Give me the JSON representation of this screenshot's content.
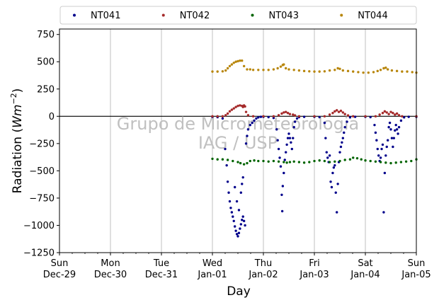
{
  "chart_data": {
    "type": "scatter",
    "xlabel": "Day",
    "ylabel_main": "Radiation (",
    "ylabel_unit": "Wm",
    "ylabel_exp": "−2",
    "ylabel_close": ")",
    "ylim": [
      -1250,
      800
    ],
    "xlim_days": [
      0,
      7
    ],
    "yticks": [
      {
        "value": 750,
        "label": "750"
      },
      {
        "value": 500,
        "label": "500"
      },
      {
        "value": 250,
        "label": "250"
      },
      {
        "value": 0,
        "label": "0"
      },
      {
        "value": -250,
        "label": "−250"
      },
      {
        "value": -500,
        "label": "−500"
      },
      {
        "value": -750,
        "label": "−750"
      },
      {
        "value": -1000,
        "label": "−1000"
      },
      {
        "value": -1250,
        "label": "−1250"
      }
    ],
    "xticks": [
      {
        "day": 0,
        "weekday": "Sun",
        "date": "Dec-29"
      },
      {
        "day": 1,
        "weekday": "Mon",
        "date": "Dec-30"
      },
      {
        "day": 2,
        "weekday": "Tue",
        "date": "Dec-31"
      },
      {
        "day": 3,
        "weekday": "Wed",
        "date": "Jan-01"
      },
      {
        "day": 4,
        "weekday": "Thu",
        "date": "Jan-02"
      },
      {
        "day": 5,
        "weekday": "Fri",
        "date": "Jan-03"
      },
      {
        "day": 6,
        "weekday": "Sat",
        "date": "Jan-04"
      },
      {
        "day": 7,
        "weekday": "Sun",
        "date": "Jan-05"
      }
    ],
    "grid": "vertical",
    "legend_position": "top",
    "watermark": [
      "Grupo de Micrometeorologia",
      "IAG / USP"
    ],
    "series": [
      {
        "name": "NT041",
        "color": "#00008b",
        "marker": "dot",
        "points": [
          [
            3.0,
            -5
          ],
          [
            3.1,
            -8
          ],
          [
            3.2,
            -20
          ],
          [
            3.25,
            -300
          ],
          [
            3.28,
            -450
          ],
          [
            3.3,
            -600
          ],
          [
            3.32,
            -700
          ],
          [
            3.34,
            -780
          ],
          [
            3.36,
            -840
          ],
          [
            3.38,
            -880
          ],
          [
            3.4,
            -920
          ],
          [
            3.42,
            -960
          ],
          [
            3.44,
            -1010
          ],
          [
            3.46,
            -1050
          ],
          [
            3.48,
            -1080
          ],
          [
            3.5,
            -1100
          ],
          [
            3.52,
            -1070
          ],
          [
            3.54,
            -1030
          ],
          [
            3.56,
            -990
          ],
          [
            3.58,
            -950
          ],
          [
            3.6,
            -920
          ],
          [
            3.62,
            -960
          ],
          [
            3.64,
            -1000
          ],
          [
            3.44,
            -650
          ],
          [
            3.48,
            -780
          ],
          [
            3.52,
            -860
          ],
          [
            3.56,
            -700
          ],
          [
            3.58,
            -620
          ],
          [
            3.6,
            -560
          ],
          [
            3.66,
            -250
          ],
          [
            3.68,
            -180
          ],
          [
            3.7,
            -120
          ],
          [
            3.74,
            -80
          ],
          [
            3.78,
            -60
          ],
          [
            3.82,
            -40
          ],
          [
            3.86,
            -20
          ],
          [
            3.9,
            -10
          ],
          [
            3.95,
            -5
          ],
          [
            4.0,
            -5
          ],
          [
            4.1,
            -8
          ],
          [
            4.2,
            -15
          ],
          [
            4.26,
            -120
          ],
          [
            4.28,
            -220
          ],
          [
            4.3,
            -300
          ],
          [
            4.32,
            -380
          ],
          [
            4.34,
            -460
          ],
          [
            4.36,
            -720
          ],
          [
            4.37,
            -870
          ],
          [
            4.38,
            -640
          ],
          [
            4.4,
            -520
          ],
          [
            4.42,
            -400
          ],
          [
            4.44,
            -330
          ],
          [
            4.46,
            -260
          ],
          [
            4.48,
            -200
          ],
          [
            4.5,
            -160
          ],
          [
            4.52,
            -200
          ],
          [
            4.54,
            -240
          ],
          [
            4.56,
            -300
          ],
          [
            4.58,
            -200
          ],
          [
            4.6,
            -100
          ],
          [
            4.62,
            -50
          ],
          [
            4.66,
            -20
          ],
          [
            4.7,
            -8
          ],
          [
            4.8,
            -5
          ],
          [
            5.0,
            -5
          ],
          [
            5.1,
            -8
          ],
          [
            5.2,
            -60
          ],
          [
            5.22,
            -200
          ],
          [
            5.24,
            -330
          ],
          [
            5.26,
            -380
          ],
          [
            5.28,
            -420
          ],
          [
            5.3,
            -360
          ],
          [
            5.32,
            -600
          ],
          [
            5.34,
            -650
          ],
          [
            5.36,
            -520
          ],
          [
            5.38,
            -470
          ],
          [
            5.4,
            -450
          ],
          [
            5.42,
            -700
          ],
          [
            5.44,
            -880
          ],
          [
            5.46,
            -620
          ],
          [
            5.48,
            -420
          ],
          [
            5.5,
            -330
          ],
          [
            5.52,
            -280
          ],
          [
            5.54,
            -240
          ],
          [
            5.56,
            -200
          ],
          [
            5.58,
            -150
          ],
          [
            5.6,
            -100
          ],
          [
            5.64,
            -50
          ],
          [
            5.7,
            -10
          ],
          [
            5.8,
            -5
          ],
          [
            6.0,
            -5
          ],
          [
            6.1,
            -8
          ],
          [
            6.18,
            -80
          ],
          [
            6.2,
            -150
          ],
          [
            6.22,
            -220
          ],
          [
            6.24,
            -300
          ],
          [
            6.26,
            -360
          ],
          [
            6.28,
            -410
          ],
          [
            6.3,
            -380
          ],
          [
            6.32,
            -300
          ],
          [
            6.34,
            -260
          ],
          [
            6.36,
            -880
          ],
          [
            6.38,
            -520
          ],
          [
            6.4,
            -360
          ],
          [
            6.42,
            -280
          ],
          [
            6.44,
            -220
          ],
          [
            6.46,
            -100
          ],
          [
            6.48,
            -60
          ],
          [
            6.5,
            -120
          ],
          [
            6.52,
            -200
          ],
          [
            6.54,
            -280
          ],
          [
            6.56,
            -200
          ],
          [
            6.58,
            -130
          ],
          [
            6.6,
            -80
          ],
          [
            6.62,
            -120
          ],
          [
            6.64,
            -160
          ],
          [
            6.66,
            -100
          ],
          [
            6.7,
            -40
          ],
          [
            6.76,
            -10
          ],
          [
            6.85,
            -5
          ],
          [
            7.0,
            -5
          ]
        ]
      },
      {
        "name": "NT042",
        "color": "#a52a2a",
        "marker": "dot",
        "points": [
          [
            3.0,
            0
          ],
          [
            3.1,
            0
          ],
          [
            3.2,
            0
          ],
          [
            3.26,
            10
          ],
          [
            3.3,
            25
          ],
          [
            3.34,
            45
          ],
          [
            3.38,
            60
          ],
          [
            3.42,
            72
          ],
          [
            3.46,
            85
          ],
          [
            3.5,
            95
          ],
          [
            3.54,
            100
          ],
          [
            3.58,
            95
          ],
          [
            3.6,
            85
          ],
          [
            3.62,
            100
          ],
          [
            3.64,
            90
          ],
          [
            3.66,
            40
          ],
          [
            3.7,
            10
          ],
          [
            3.8,
            0
          ],
          [
            4.0,
            0
          ],
          [
            4.2,
            0
          ],
          [
            4.3,
            10
          ],
          [
            4.36,
            25
          ],
          [
            4.4,
            35
          ],
          [
            4.44,
            40
          ],
          [
            4.48,
            30
          ],
          [
            4.52,
            20
          ],
          [
            4.58,
            15
          ],
          [
            4.62,
            8
          ],
          [
            4.7,
            0
          ],
          [
            5.0,
            0
          ],
          [
            5.2,
            0
          ],
          [
            5.3,
            15
          ],
          [
            5.36,
            30
          ],
          [
            5.4,
            45
          ],
          [
            5.44,
            55
          ],
          [
            5.48,
            40
          ],
          [
            5.52,
            50
          ],
          [
            5.56,
            35
          ],
          [
            5.6,
            20
          ],
          [
            5.66,
            8
          ],
          [
            5.76,
            0
          ],
          [
            6.0,
            0
          ],
          [
            6.2,
            0
          ],
          [
            6.28,
            15
          ],
          [
            6.34,
            30
          ],
          [
            6.38,
            45
          ],
          [
            6.42,
            35
          ],
          [
            6.46,
            20
          ],
          [
            6.5,
            40
          ],
          [
            6.54,
            30
          ],
          [
            6.58,
            15
          ],
          [
            6.62,
            25
          ],
          [
            6.66,
            10
          ],
          [
            6.72,
            0
          ],
          [
            7.0,
            0
          ]
        ]
      },
      {
        "name": "NT043",
        "color": "#006400",
        "marker": "dot",
        "points": [
          [
            3.0,
            -390
          ],
          [
            3.1,
            -395
          ],
          [
            3.2,
            -395
          ],
          [
            3.3,
            -400
          ],
          [
            3.4,
            -410
          ],
          [
            3.5,
            -420
          ],
          [
            3.55,
            -430
          ],
          [
            3.62,
            -440
          ],
          [
            3.68,
            -430
          ],
          [
            3.74,
            -410
          ],
          [
            3.82,
            -405
          ],
          [
            3.9,
            -410
          ],
          [
            4.0,
            -410
          ],
          [
            4.1,
            -415
          ],
          [
            4.2,
            -410
          ],
          [
            4.3,
            -415
          ],
          [
            4.4,
            -420
          ],
          [
            4.46,
            -425
          ],
          [
            4.52,
            -420
          ],
          [
            4.6,
            -415
          ],
          [
            4.7,
            -420
          ],
          [
            4.8,
            -425
          ],
          [
            4.9,
            -420
          ],
          [
            5.0,
            -410
          ],
          [
            5.1,
            -405
          ],
          [
            5.2,
            -410
          ],
          [
            5.3,
            -420
          ],
          [
            5.4,
            -415
          ],
          [
            5.5,
            -410
          ],
          [
            5.6,
            -400
          ],
          [
            5.7,
            -395
          ],
          [
            5.76,
            -380
          ],
          [
            5.84,
            -385
          ],
          [
            5.92,
            -395
          ],
          [
            6.0,
            -405
          ],
          [
            6.1,
            -410
          ],
          [
            6.2,
            -415
          ],
          [
            6.3,
            -420
          ],
          [
            6.4,
            -425
          ],
          [
            6.5,
            -430
          ],
          [
            6.6,
            -425
          ],
          [
            6.7,
            -420
          ],
          [
            6.8,
            -415
          ],
          [
            6.9,
            -410
          ],
          [
            7.0,
            -395
          ]
        ]
      },
      {
        "name": "NT044",
        "color": "#b8860b",
        "marker": "dot",
        "points": [
          [
            3.0,
            410
          ],
          [
            3.1,
            410
          ],
          [
            3.2,
            412
          ],
          [
            3.26,
            420
          ],
          [
            3.3,
            440
          ],
          [
            3.34,
            460
          ],
          [
            3.38,
            475
          ],
          [
            3.42,
            490
          ],
          [
            3.46,
            500
          ],
          [
            3.5,
            505
          ],
          [
            3.54,
            510
          ],
          [
            3.58,
            510
          ],
          [
            3.62,
            460
          ],
          [
            3.68,
            430
          ],
          [
            3.74,
            430
          ],
          [
            3.8,
            425
          ],
          [
            3.9,
            425
          ],
          [
            4.0,
            425
          ],
          [
            4.1,
            425
          ],
          [
            4.2,
            430
          ],
          [
            4.28,
            440
          ],
          [
            4.34,
            455
          ],
          [
            4.38,
            470
          ],
          [
            4.4,
            475
          ],
          [
            4.44,
            440
          ],
          [
            4.5,
            430
          ],
          [
            4.6,
            425
          ],
          [
            4.7,
            420
          ],
          [
            4.8,
            415
          ],
          [
            4.9,
            412
          ],
          [
            5.0,
            410
          ],
          [
            5.1,
            410
          ],
          [
            5.2,
            412
          ],
          [
            5.3,
            420
          ],
          [
            5.4,
            425
          ],
          [
            5.46,
            440
          ],
          [
            5.5,
            435
          ],
          [
            5.56,
            420
          ],
          [
            5.66,
            415
          ],
          [
            5.76,
            410
          ],
          [
            5.86,
            405
          ],
          [
            5.96,
            400
          ],
          [
            6.06,
            400
          ],
          [
            6.16,
            405
          ],
          [
            6.24,
            415
          ],
          [
            6.3,
            425
          ],
          [
            6.36,
            440
          ],
          [
            6.4,
            445
          ],
          [
            6.44,
            430
          ],
          [
            6.52,
            420
          ],
          [
            6.62,
            415
          ],
          [
            6.72,
            410
          ],
          [
            6.82,
            410
          ],
          [
            6.92,
            405
          ],
          [
            7.0,
            400
          ]
        ]
      }
    ]
  }
}
